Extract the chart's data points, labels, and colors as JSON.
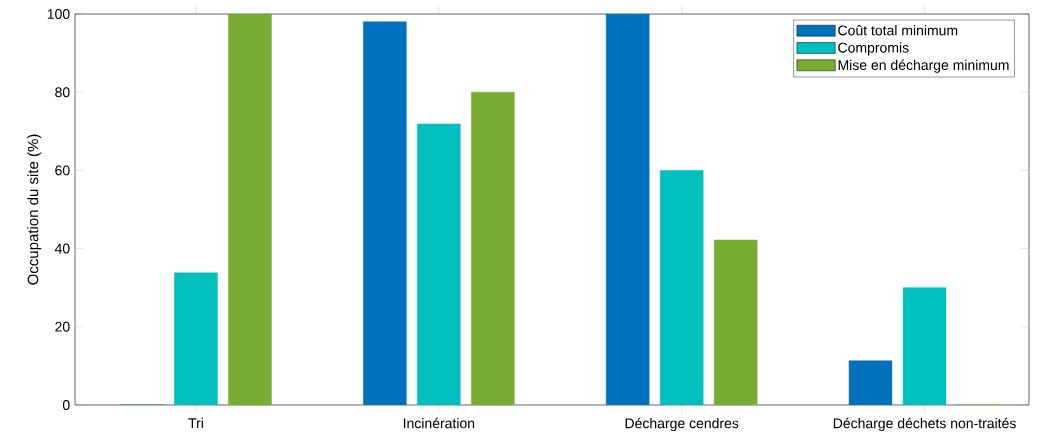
{
  "chart_data": {
    "type": "bar",
    "ylabel": "Occupation du site (%)",
    "categories": [
      "Tri",
      "Incinération",
      "Décharge cendres",
      "Décharge déchets non-traités"
    ],
    "series": [
      {
        "name": "Coût total minimum",
        "color": "#0072bd",
        "values": [
          0,
          98,
          100,
          11.3
        ]
      },
      {
        "name": "Compromis",
        "color": "#00bfbf",
        "values": [
          33.8,
          71.9,
          60,
          30
        ]
      },
      {
        "name": "Mise en décharge minimum",
        "color": "#77ac30",
        "values": [
          100,
          80,
          42.2,
          0
        ]
      }
    ],
    "ylim": [
      0,
      100
    ],
    "yticks": [
      0,
      20,
      40,
      60,
      80,
      100
    ],
    "grid": false,
    "legend": "top right"
  }
}
